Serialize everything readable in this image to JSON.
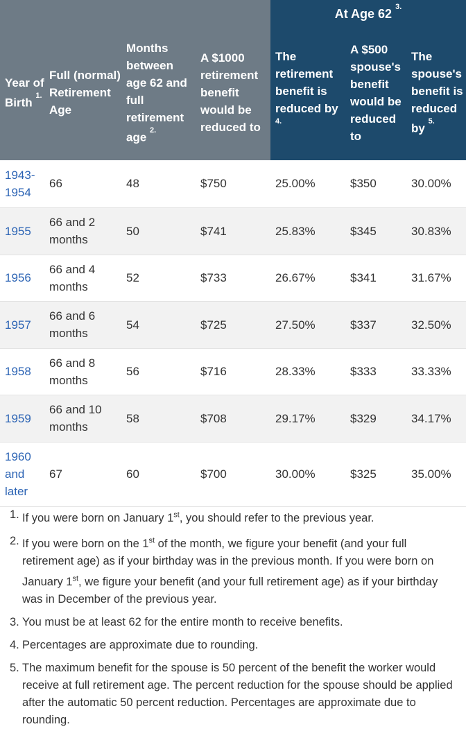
{
  "header": {
    "group_label": "At Age 62",
    "group_note": "3.",
    "columns": [
      {
        "label": "Year of Birth",
        "note": "1."
      },
      {
        "label": "Full (normal) Retirement Age",
        "note": ""
      },
      {
        "label": "Months between age 62 and full retirement age",
        "note": "2."
      },
      {
        "label": "A $1000 retirement benefit would be reduced to",
        "note": ""
      },
      {
        "label": "The retirement benefit is reduced by",
        "note": "4."
      },
      {
        "label": "A $500 spouse's benefit would be reduced to",
        "note": ""
      },
      {
        "label": "The spouse's benefit is reduced by",
        "note": "5."
      }
    ]
  },
  "rows": [
    {
      "year": "1943-1954",
      "fra": "66",
      "months": "48",
      "benefit": "$750",
      "reduction": "25.00%",
      "spouse_benefit": "$350",
      "spouse_reduction": "30.00%"
    },
    {
      "year": "1955",
      "fra": "66 and 2 months",
      "months": "50",
      "benefit": "$741",
      "reduction": "25.83%",
      "spouse_benefit": "$345",
      "spouse_reduction": "30.83%"
    },
    {
      "year": "1956",
      "fra": "66 and 4 months",
      "months": "52",
      "benefit": "$733",
      "reduction": "26.67%",
      "spouse_benefit": "$341",
      "spouse_reduction": "31.67%"
    },
    {
      "year": "1957",
      "fra": "66 and 6 months",
      "months": "54",
      "benefit": "$725",
      "reduction": "27.50%",
      "spouse_benefit": "$337",
      "spouse_reduction": "32.50%"
    },
    {
      "year": "1958",
      "fra": "66 and 8 months",
      "months": "56",
      "benefit": "$716",
      "reduction": "28.33%",
      "spouse_benefit": "$333",
      "spouse_reduction": "33.33%"
    },
    {
      "year": "1959",
      "fra": "66 and 10 months",
      "months": "58",
      "benefit": "$708",
      "reduction": "29.17%",
      "spouse_benefit": "$329",
      "spouse_reduction": "34.17%"
    },
    {
      "year": "1960 and later",
      "fra": "67",
      "months": "60",
      "benefit": "$700",
      "reduction": "30.00%",
      "spouse_benefit": "$325",
      "spouse_reduction": "35.00%"
    }
  ],
  "footnotes": [
    {
      "num": "1.",
      "parts": [
        [
          "If you were born on January 1",
          0
        ],
        [
          "st",
          1
        ],
        [
          ", you should refer to the previous year.",
          0
        ]
      ]
    },
    {
      "num": "2.",
      "parts": [
        [
          "If you were born on the 1",
          0
        ],
        [
          "st",
          1
        ],
        [
          " of the month, we figure your benefit (and your full retirement age) as if your birthday was in the previous month. If you were born on January 1",
          0
        ],
        [
          "st",
          1
        ],
        [
          ", we figure your benefit (and your full retirement age) as if your birthday was in December of the previous year.",
          0
        ]
      ]
    },
    {
      "num": "3.",
      "parts": [
        [
          "You must be at least 62 for the entire month to receive benefits.",
          0
        ]
      ]
    },
    {
      "num": "4.",
      "parts": [
        [
          "Percentages are approximate due to rounding.",
          0
        ]
      ]
    },
    {
      "num": "5.",
      "parts": [
        [
          "The maximum benefit for the spouse is 50 percent of the benefit the worker would receive at full retirement age. The percent reduction for the spouse should be applied after the automatic 50 percent reduction. Percentages are approximate due to rounding.",
          0
        ]
      ]
    }
  ],
  "colors": {
    "header_gray": "#6e7b86",
    "header_dark": "#1d4a6c",
    "year_link": "#2b63b4",
    "row_alt": "#f2f2f2"
  }
}
